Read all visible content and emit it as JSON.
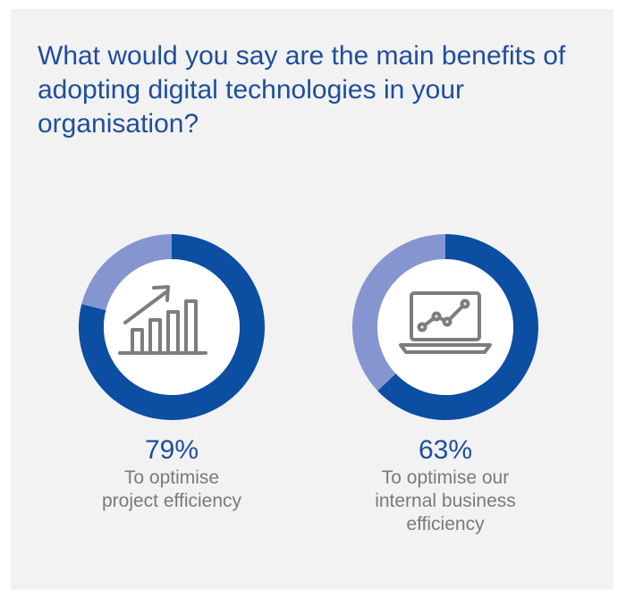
{
  "title": "What would you say are the main benefits of adopting digital technologies in your organisation?",
  "colors": {
    "primary": "#0b4ea2",
    "secondary": "#8595d0",
    "icon": "#7d7d7d",
    "title": "#1f4e9a"
  },
  "chart_data": [
    {
      "type": "pie",
      "donut": true,
      "icon": "bar-chart-arrow-icon",
      "value": 79,
      "value_label": "79%",
      "label_lines": [
        "To optimise",
        "project efficiency"
      ]
    },
    {
      "type": "pie",
      "donut": true,
      "icon": "laptop-line-chart-icon",
      "value": 63,
      "value_label": "63%",
      "label_lines": [
        "To optimise our",
        "internal business",
        "efficiency"
      ]
    }
  ]
}
